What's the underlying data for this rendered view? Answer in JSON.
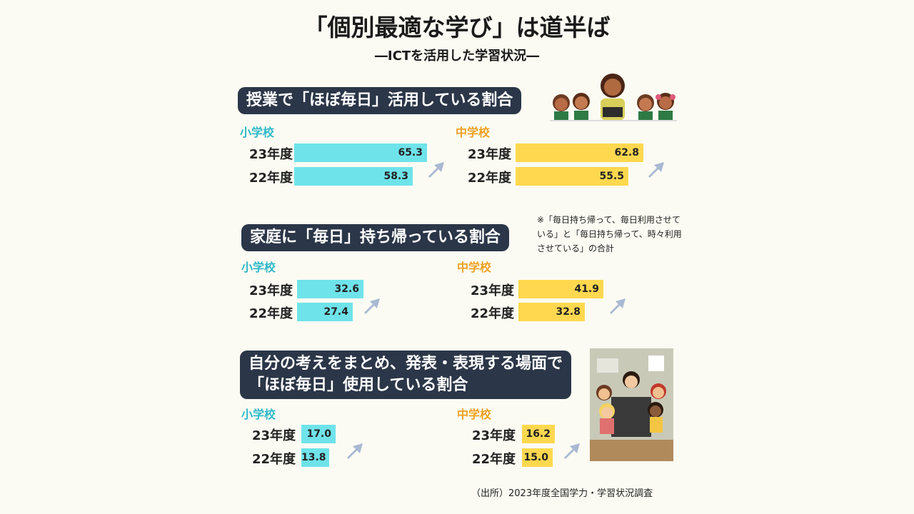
{
  "title": "「個別最適な学び」は道半ば",
  "subtitle": "―ICTを活用した学習状況―",
  "note": "※「毎日持ち帰って、毎日利用させている」と「毎日持ち帰って、時々利用させている」の合計",
  "source": "（出所）2023年度全国学力・学習状況調査",
  "colors": {
    "elementary": "#6fe3ea",
    "junior_high": "#ffd84f",
    "heading_bg": "#2b3648",
    "arrow": "#a9b9d2"
  },
  "chart_data": [
    {
      "type": "bar",
      "title": "授業で「ほぼ毎日」活用している割合",
      "categories": [
        "23年度",
        "22年度"
      ],
      "groups": [
        {
          "name": "小学校",
          "values": [
            65.3,
            58.3
          ]
        },
        {
          "name": "中学校",
          "values": [
            62.8,
            55.5
          ]
        }
      ]
    },
    {
      "type": "bar",
      "title": "家庭に「毎日」持ち帰っている割合",
      "categories": [
        "23年度",
        "22年度"
      ],
      "groups": [
        {
          "name": "小学校",
          "values": [
            32.6,
            27.4
          ]
        },
        {
          "name": "中学校",
          "values": [
            41.9,
            32.8
          ]
        }
      ]
    },
    {
      "type": "bar",
      "title_lines": [
        "自分の考えをまとめ、発表・表現する場面で",
        "「ほぼ毎日」使用している割合"
      ],
      "categories": [
        "23年度",
        "22年度"
      ],
      "groups": [
        {
          "name": "小学校",
          "values": [
            17.0,
            13.8
          ]
        },
        {
          "name": "中学校",
          "values": [
            16.2,
            15.0
          ]
        }
      ]
    }
  ]
}
